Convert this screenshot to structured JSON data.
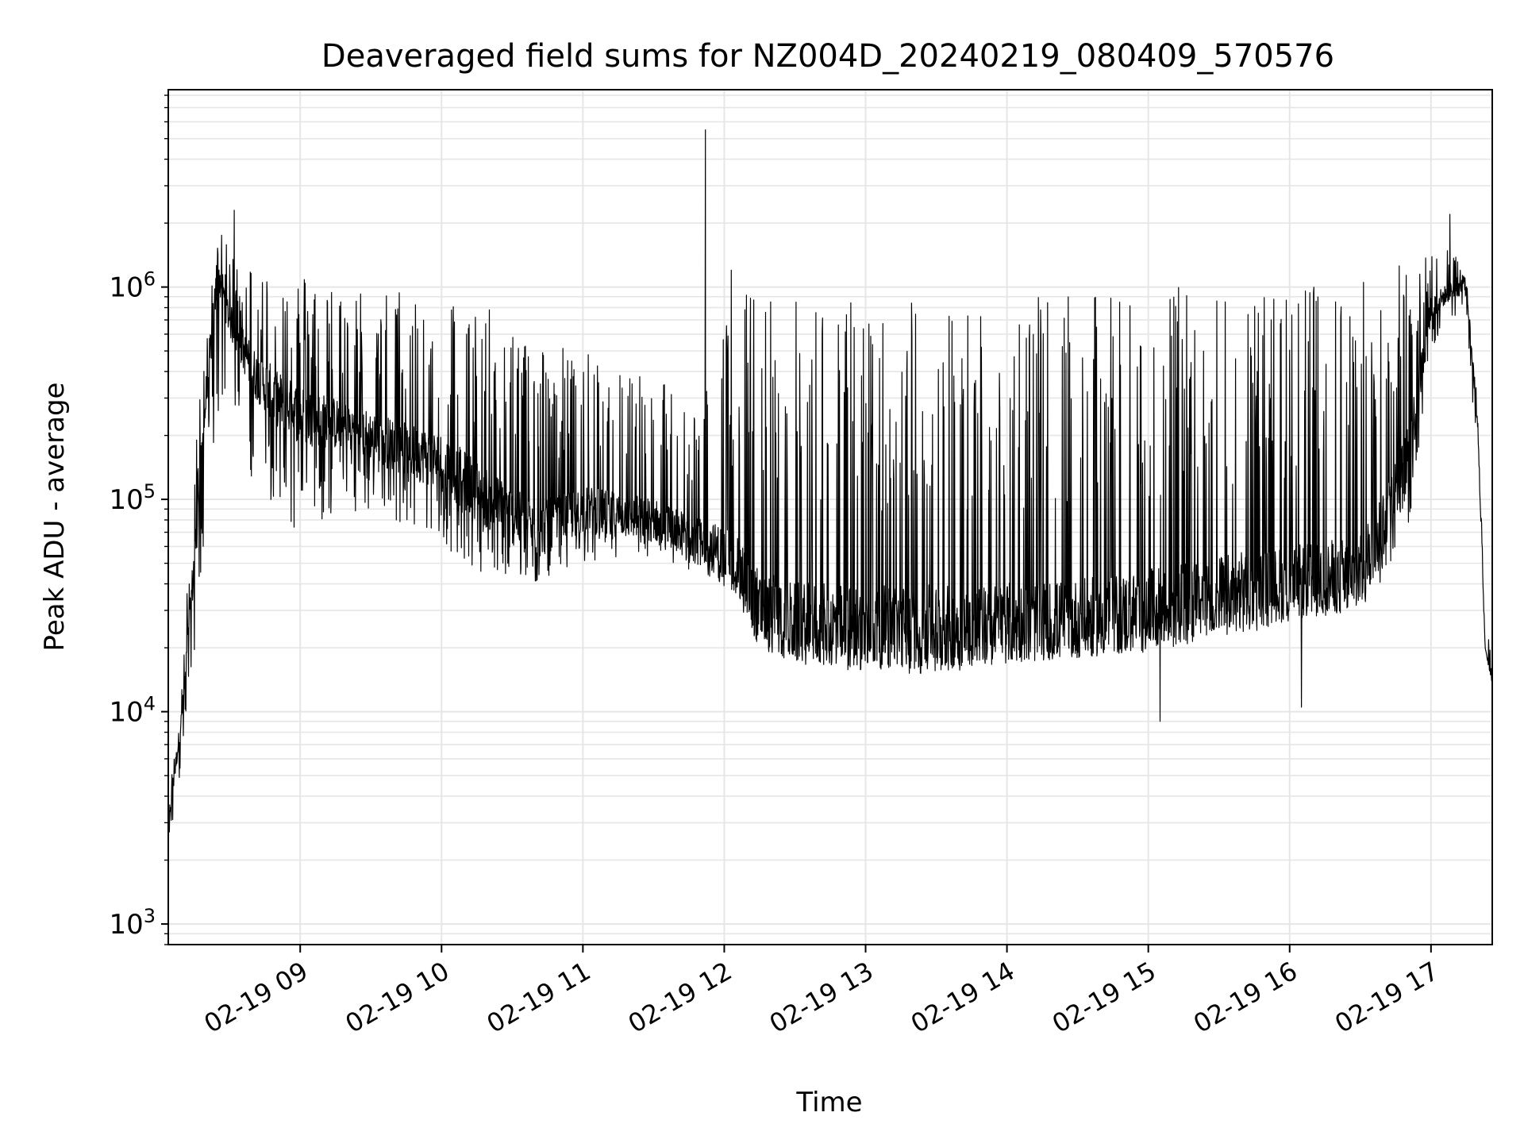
{
  "chart_data": {
    "type": "line",
    "title": "Deaveraged field sums for NZ004D_20240219_080409_570576",
    "xlabel": "Time",
    "ylabel": "Peak ADU - average",
    "x_range": [
      "2024-02-19T08:04:00",
      "2024-02-19T17:26:00"
    ],
    "ylim": [
      800,
      8500000
    ],
    "y_scale": "log",
    "grid": true,
    "legend": "none",
    "line_color": "#000000",
    "x_ticks": [
      {
        "value": "2024-02-19T09:00:00",
        "label": "02-19 09"
      },
      {
        "value": "2024-02-19T10:00:00",
        "label": "02-19 10"
      },
      {
        "value": "2024-02-19T11:00:00",
        "label": "02-19 11"
      },
      {
        "value": "2024-02-19T12:00:00",
        "label": "02-19 12"
      },
      {
        "value": "2024-02-19T13:00:00",
        "label": "02-19 13"
      },
      {
        "value": "2024-02-19T14:00:00",
        "label": "02-19 14"
      },
      {
        "value": "2024-02-19T15:00:00",
        "label": "02-19 15"
      },
      {
        "value": "2024-02-19T16:00:00",
        "label": "02-19 16"
      },
      {
        "value": "2024-02-19T17:00:00",
        "label": "02-19 17"
      }
    ],
    "y_ticks": [
      {
        "value": 1000,
        "base": "10",
        "exp": "3"
      },
      {
        "value": 10000,
        "base": "10",
        "exp": "4"
      },
      {
        "value": 100000,
        "base": "10",
        "exp": "5"
      },
      {
        "value": 1000000,
        "base": "10",
        "exp": "6"
      }
    ],
    "series": [
      {
        "envelope": {
          "times": [
            "2024-02-19T08:04:00",
            "2024-02-19T08:10:00",
            "2024-02-19T08:15:00",
            "2024-02-19T08:20:00",
            "2024-02-19T08:25:00",
            "2024-02-19T08:30:00",
            "2024-02-19T08:40:00",
            "2024-02-19T08:50:00",
            "2024-02-19T09:00:00",
            "2024-02-19T09:20:00",
            "2024-02-19T09:40:00",
            "2024-02-19T10:00:00",
            "2024-02-19T10:20:00",
            "2024-02-19T10:40:00",
            "2024-02-19T11:00:00",
            "2024-02-19T11:30:00",
            "2024-02-19T11:50:00",
            "2024-02-19T12:05:00",
            "2024-02-19T12:15:00",
            "2024-02-19T12:30:00",
            "2024-02-19T13:00:00",
            "2024-02-19T13:30:00",
            "2024-02-19T14:00:00",
            "2024-02-19T14:30:00",
            "2024-02-19T15:00:00",
            "2024-02-19T15:30:00",
            "2024-02-19T16:00:00",
            "2024-02-19T16:30:00",
            "2024-02-19T16:50:00",
            "2024-02-19T17:00:00",
            "2024-02-19T17:10:00",
            "2024-02-19T17:15:00",
            "2024-02-19T17:18:00",
            "2024-02-19T17:20:00",
            "2024-02-19T17:23:00",
            "2024-02-19T17:26:00"
          ],
          "low": [
            2000,
            6000,
            15000,
            80000,
            250000,
            300000,
            120000,
            80000,
            70000,
            90000,
            80000,
            60000,
            40000,
            40000,
            50000,
            50000,
            45000,
            35000,
            20000,
            17000,
            15000,
            15000,
            17000,
            18000,
            19000,
            22000,
            26000,
            30000,
            60000,
            500000,
            700000,
            800000,
            250000,
            150000,
            20000,
            13000
          ],
          "base": [
            3000,
            10000,
            50000,
            300000,
            1200000,
            700000,
            400000,
            300000,
            250000,
            220000,
            180000,
            150000,
            100000,
            70000,
            90000,
            80000,
            65000,
            50000,
            30000,
            26000,
            25000,
            25000,
            26000,
            27000,
            30000,
            36000,
            40000,
            45000,
            150000,
            800000,
            1000000,
            1000000,
            400000,
            200000,
            20000,
            15000
          ],
          "high": [
            4000,
            15000,
            150000,
            700000,
            1900000,
            1500000,
            1300000,
            1200000,
            1200000,
            1000000,
            1000000,
            1000000,
            800000,
            600000,
            500000,
            400000,
            300000,
            1000000,
            1000000,
            900000,
            900000,
            900000,
            900000,
            900000,
            1000000,
            1000000,
            1000000,
            1100000,
            1500000,
            1600000,
            1500000,
            1100000,
            500000,
            250000,
            25000,
            20000
          ]
        },
        "spikes": [
          {
            "time": "2024-02-19T08:32:00",
            "value": 2300000
          },
          {
            "time": "2024-02-19T11:52:00",
            "value": 5500000
          },
          {
            "time": "2024-02-19T12:03:00",
            "value": 1200000
          },
          {
            "time": "2024-02-19T17:08:00",
            "value": 2200000
          },
          {
            "time": "2024-02-19T15:05:00",
            "value": 9000
          },
          {
            "time": "2024-02-19T16:05:00",
            "value": 10500
          }
        ]
      }
    ]
  }
}
